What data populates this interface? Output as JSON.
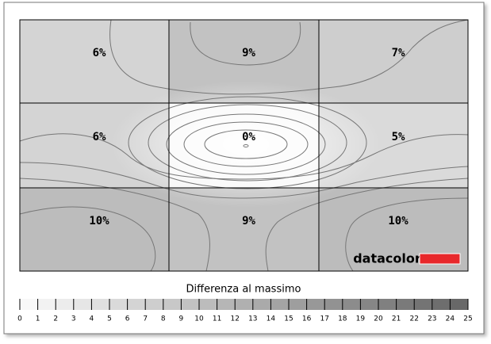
{
  "chart_data": {
    "type": "uniformity",
    "values": [
      [
        6,
        9,
        7
      ],
      [
        6,
        0,
        5
      ],
      [
        10,
        9,
        10
      ]
    ],
    "value_labels": [
      [
        "6%",
        "9%",
        "7%"
      ],
      [
        "6%",
        "0%",
        "5%"
      ],
      [
        "10%",
        "9%",
        "10%"
      ]
    ],
    "colorbar_label": "Differenza al massimo",
    "clim": [
      0,
      25
    ],
    "cticks": [
      0,
      1,
      2,
      3,
      4,
      5,
      6,
      7,
      8,
      9,
      10,
      11,
      12,
      13,
      14,
      15,
      16,
      17,
      18,
      19,
      20,
      21,
      22,
      23,
      24,
      25
    ],
    "brand": "datacolor",
    "brand_color": "#e8282b"
  }
}
